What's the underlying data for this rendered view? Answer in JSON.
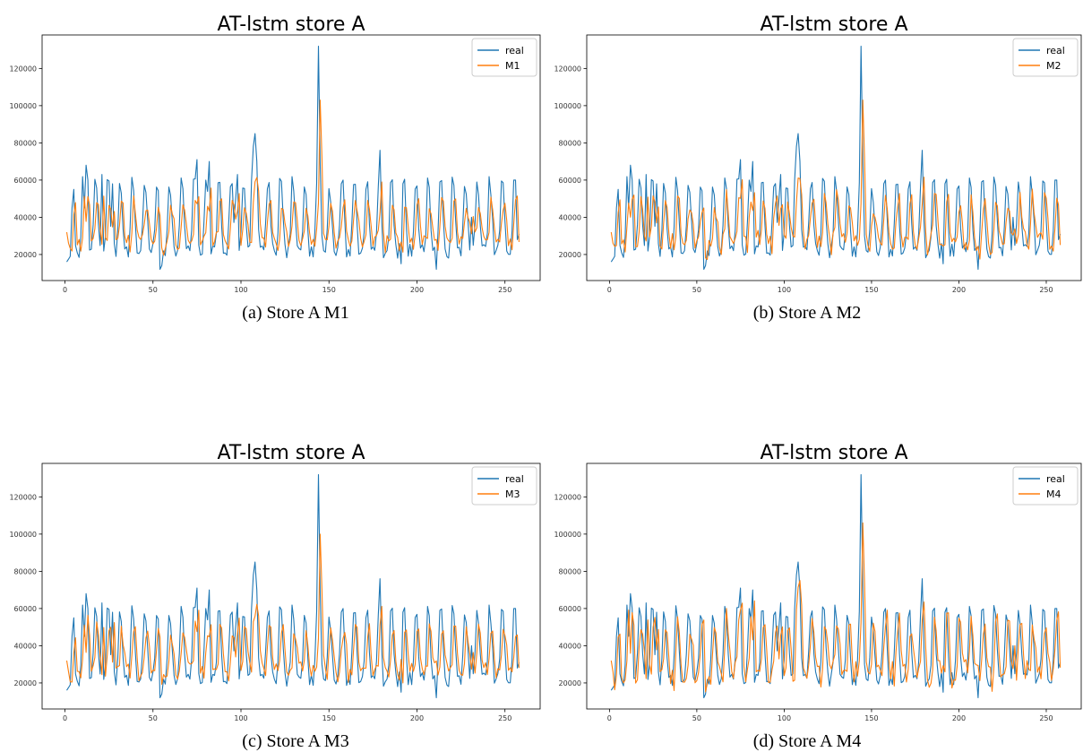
{
  "chart_data": [
    {
      "type": "line",
      "title": "AT-lstm store A",
      "caption": "(a) Store A M1",
      "xlabel": "",
      "ylabel": "",
      "xlim": [
        -13,
        270
      ],
      "ylim": [
        6000,
        138000
      ],
      "xticks": [
        0,
        50,
        100,
        150,
        200,
        250
      ],
      "yticks": [
        20000,
        40000,
        60000,
        80000,
        100000,
        120000
      ],
      "legend": "top-right",
      "grid": false,
      "series": [
        {
          "name": "real",
          "color": "#1f77b4",
          "base": "real"
        },
        {
          "name": "M1",
          "color": "#ff7f0e",
          "base": "pred",
          "lag": 1,
          "smooth": 0.55,
          "noise": 4000,
          "peak": 103000,
          "seed": 11
        }
      ]
    },
    {
      "type": "line",
      "title": "AT-lstm store A",
      "caption": "(b) Store A M2",
      "xlabel": "",
      "ylabel": "",
      "xlim": [
        -13,
        270
      ],
      "ylim": [
        6000,
        138000
      ],
      "xticks": [
        0,
        50,
        100,
        150,
        200,
        250
      ],
      "yticks": [
        20000,
        40000,
        60000,
        80000,
        100000,
        120000
      ],
      "legend": "top-right",
      "grid": false,
      "series": [
        {
          "name": "real",
          "color": "#1f77b4",
          "base": "real"
        },
        {
          "name": "M2",
          "color": "#ff7f0e",
          "base": "pred",
          "lag": 1,
          "smooth": 0.6,
          "noise": 5000,
          "peak": 103000,
          "seed": 23
        }
      ]
    },
    {
      "type": "line",
      "title": "AT-lstm store A",
      "caption": "(c) Store A M3",
      "xlabel": "",
      "ylabel": "",
      "xlim": [
        -13,
        270
      ],
      "ylim": [
        6000,
        138000
      ],
      "xticks": [
        0,
        50,
        100,
        150,
        200,
        250
      ],
      "yticks": [
        20000,
        40000,
        60000,
        80000,
        100000,
        120000
      ],
      "legend": "top-right",
      "grid": false,
      "series": [
        {
          "name": "real",
          "color": "#1f77b4",
          "base": "real"
        },
        {
          "name": "M3",
          "color": "#ff7f0e",
          "base": "pred",
          "lag": 1,
          "smooth": 0.6,
          "noise": 4500,
          "peak": 100000,
          "seed": 37
        }
      ]
    },
    {
      "type": "line",
      "title": "AT-lstm store A",
      "caption": "(d) Store A M4",
      "xlabel": "",
      "ylabel": "",
      "xlim": [
        -13,
        270
      ],
      "ylim": [
        6000,
        138000
      ],
      "xticks": [
        0,
        50,
        100,
        150,
        200,
        250
      ],
      "yticks": [
        20000,
        40000,
        60000,
        80000,
        100000,
        120000
      ],
      "legend": "top-right",
      "grid": false,
      "series": [
        {
          "name": "real",
          "color": "#1f77b4",
          "base": "real"
        },
        {
          "name": "M4",
          "color": "#ff7f0e",
          "base": "pred",
          "lag": 1,
          "smooth": 0.75,
          "noise": 6500,
          "peak": 106000,
          "seed": 53
        }
      ]
    }
  ]
}
